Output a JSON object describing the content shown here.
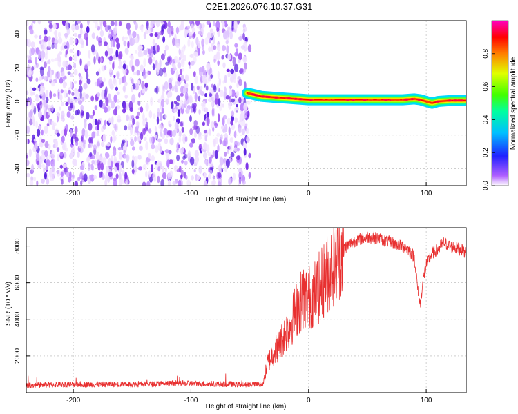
{
  "title": "C2E1.2026.076.10.37.G31",
  "chart_data": [
    {
      "type": "heatmap",
      "xlabel": "Height of straight line (km)",
      "ylabel": "Frequency (Hz)",
      "xlim": [
        -240,
        134
      ],
      "ylim": [
        -50,
        48
      ],
      "xticks": [
        -200,
        -100,
        0,
        100
      ],
      "yticks": [
        -40,
        -20,
        0,
        20,
        40
      ],
      "noise_region": [
        -240,
        -50
      ],
      "signal_ridge": {
        "x": [
          -52,
          -40,
          -30,
          -20,
          -10,
          0,
          20,
          40,
          60,
          80,
          90,
          95,
          100,
          105,
          110,
          120,
          134
        ],
        "y": [
          5,
          3,
          2.5,
          2,
          1.5,
          1,
          1,
          1,
          1,
          1,
          1.5,
          1,
          0,
          -1,
          0,
          0.5,
          0.5
        ]
      },
      "colorbar": {
        "label": "Normalized spectral amplitude",
        "range": [
          0.0,
          1.0
        ],
        "ticks": [
          "0.0",
          "0.2",
          "0.4",
          "0.6",
          "0.8"
        ]
      },
      "grid": true
    },
    {
      "type": "line",
      "xlabel": "Height of straight line (km)",
      "ylabel": "SNR (10 * v/v)",
      "xlim": [
        -240,
        134
      ],
      "ylim": [
        0,
        9000
      ],
      "xticks": [
        -200,
        -100,
        0,
        100
      ],
      "yticks": [
        2000,
        4000,
        6000,
        8000
      ],
      "color": "#e83030",
      "grid": true,
      "x": [
        -240,
        -200,
        -150,
        -120,
        -100,
        -60,
        -40,
        -38,
        -35,
        -30,
        -25,
        -20,
        -15,
        -10,
        -5,
        0,
        5,
        10,
        15,
        20,
        25,
        30,
        40,
        50,
        60,
        70,
        80,
        85,
        90,
        93,
        95,
        97,
        100,
        105,
        110,
        115,
        120,
        125,
        130,
        134
      ],
      "y": [
        400,
        450,
        450,
        500,
        500,
        450,
        450,
        600,
        1600,
        2200,
        2600,
        3200,
        3800,
        4600,
        5200,
        5200,
        5400,
        5800,
        6400,
        7000,
        7600,
        7900,
        8300,
        8500,
        8400,
        8200,
        8000,
        7800,
        7400,
        5500,
        4800,
        6000,
        7000,
        7600,
        7800,
        8200,
        8000,
        7900,
        7800,
        7600
      ]
    }
  ]
}
